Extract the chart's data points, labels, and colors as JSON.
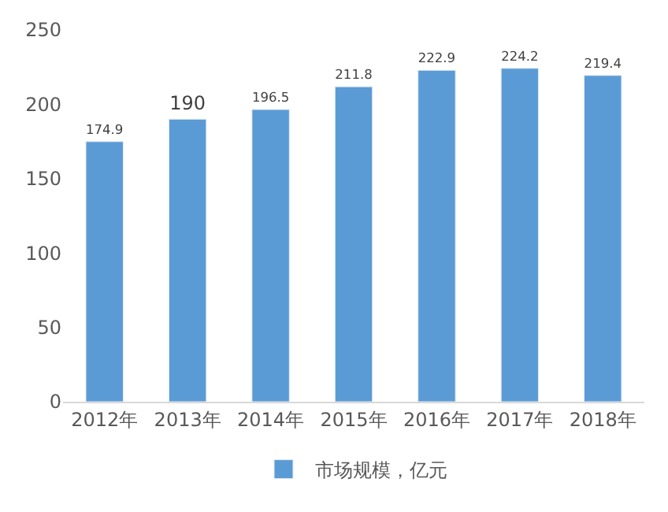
{
  "chart_data": {
    "type": "bar",
    "categories": [
      "2012年",
      "2013年",
      "2014年",
      "2015年",
      "2016年",
      "2017年",
      "2018年"
    ],
    "series": [
      {
        "name": "市场规模，亿元",
        "color": "#5b9bd5",
        "values": [
          174.9,
          190,
          196.5,
          211.8,
          222.9,
          224.2,
          219.4
        ]
      }
    ],
    "ylim": [
      0,
      250
    ],
    "yticks": [
      0,
      50,
      100,
      150,
      200,
      250
    ],
    "data_labels": true,
    "grid": false,
    "legend": "bottom"
  }
}
